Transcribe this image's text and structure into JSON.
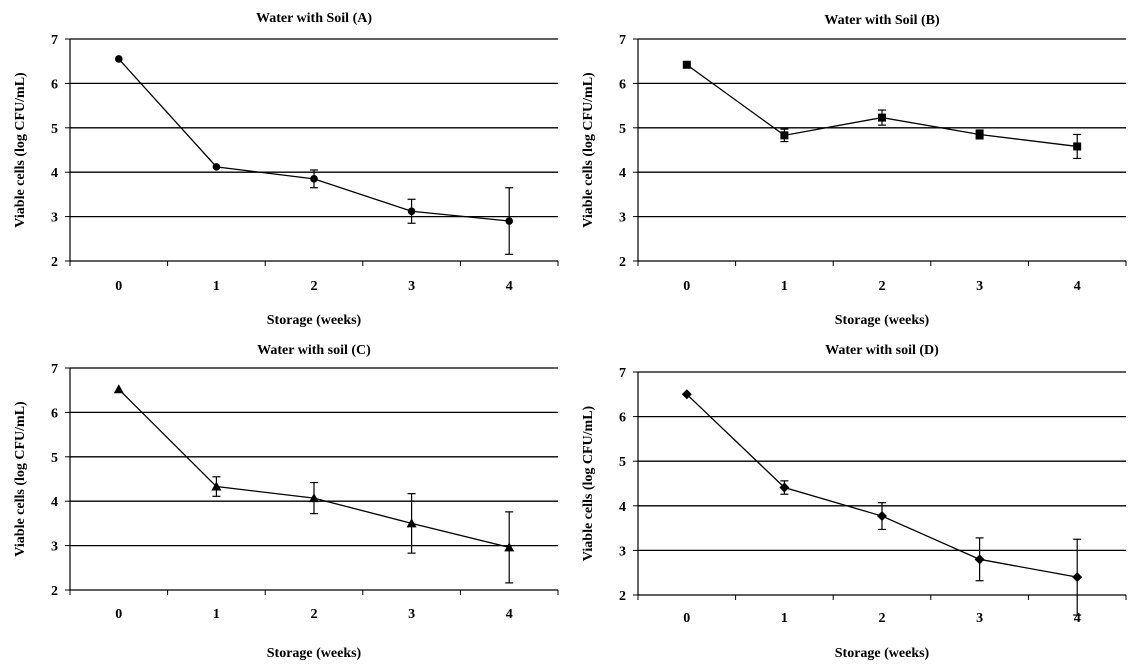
{
  "chart_data": [
    {
      "type": "line",
      "title": "Water with Soil (A)",
      "xlabel": "Storage (weeks)",
      "ylabel": "Viable cells (log CFU/mL)",
      "x": [
        0,
        1,
        2,
        3,
        4
      ],
      "ylim": [
        2,
        7
      ],
      "yticks": [
        2,
        3,
        4,
        5,
        6,
        7
      ],
      "grid": true,
      "marker": "circle",
      "series": [
        {
          "values": [
            6.55,
            4.12,
            3.85,
            3.12,
            2.9
          ],
          "errors": [
            0.05,
            0.05,
            0.2,
            0.27,
            0.75
          ]
        }
      ]
    },
    {
      "type": "line",
      "title": "Water with Soil (B)",
      "xlabel": "Storage (weeks)",
      "ylabel": "Viable cells (log CFU/mL)",
      "x": [
        0,
        1,
        2,
        3,
        4
      ],
      "ylim": [
        2,
        7
      ],
      "yticks": [
        2,
        3,
        4,
        5,
        6,
        7
      ],
      "grid": true,
      "marker": "square",
      "series": [
        {
          "values": [
            6.42,
            4.83,
            5.23,
            4.85,
            4.58
          ],
          "errors": [
            0.05,
            0.14,
            0.17,
            0.1,
            0.27
          ]
        }
      ]
    },
    {
      "type": "line",
      "title": "Water with soil (C)",
      "xlabel": "Storage (weeks)",
      "ylabel": "Viable cells (log CFU/mL)",
      "x": [
        0,
        1,
        2,
        3,
        4
      ],
      "ylim": [
        2,
        7
      ],
      "yticks": [
        2,
        3,
        4,
        5,
        6,
        7
      ],
      "grid": true,
      "marker": "triangle",
      "series": [
        {
          "values": [
            6.52,
            4.33,
            4.07,
            3.5,
            2.96
          ],
          "errors": [
            0.06,
            0.22,
            0.35,
            0.67,
            0.8
          ]
        }
      ]
    },
    {
      "type": "line",
      "title": "Water with soil (D)",
      "xlabel": "Storage (weeks)",
      "ylabel": "Viable cells (log CFU/mL)",
      "x": [
        0,
        1,
        2,
        3,
        4
      ],
      "ylim": [
        2,
        7
      ],
      "yticks": [
        2,
        3,
        4,
        5,
        6,
        7
      ],
      "grid": true,
      "marker": "diamond",
      "series": [
        {
          "values": [
            6.5,
            4.41,
            3.77,
            2.8,
            2.4
          ],
          "errors": [
            0.04,
            0.15,
            0.3,
            0.48,
            0.85
          ]
        }
      ]
    }
  ]
}
